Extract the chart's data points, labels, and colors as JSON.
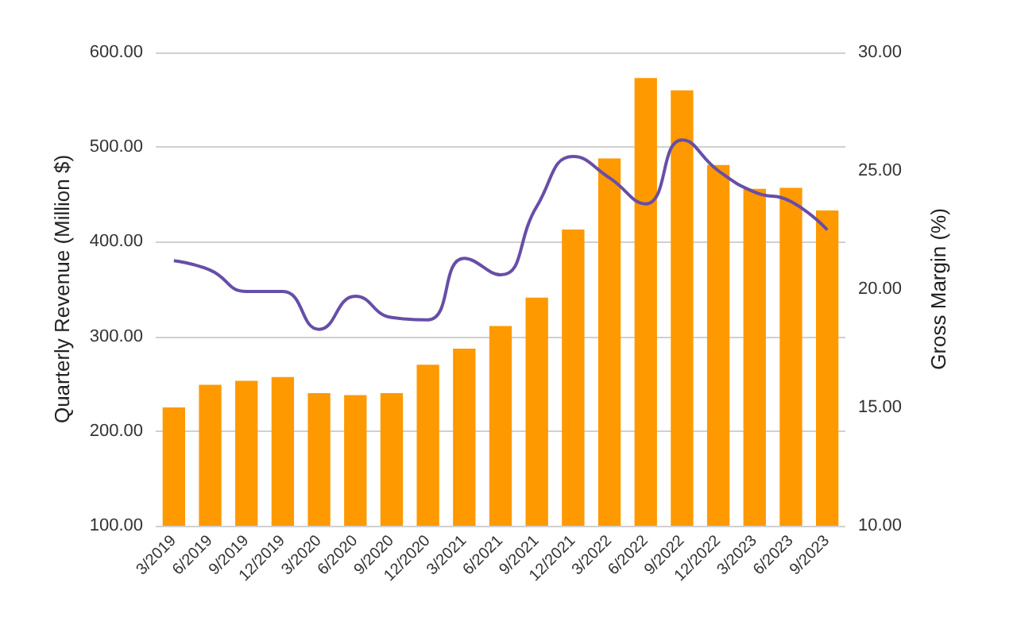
{
  "chart_data": {
    "type": "bar",
    "ylabel": "Quarterly Revenue (Million $)",
    "y2label": "Gross Margin (%)",
    "categories": [
      "3/2019",
      "6/2019",
      "9/2019",
      "12/2019",
      "3/2020",
      "6/2020",
      "9/2020",
      "12/2020",
      "3/2021",
      "6/2021",
      "9/2021",
      "12/2021",
      "3/2022",
      "6/2022",
      "9/2022",
      "12/2022",
      "3/2023",
      "6/2023",
      "9/2023"
    ],
    "series": [
      {
        "color": "#ff9900",
        "values": [
          225,
          249,
          253,
          257,
          240,
          238,
          240,
          270,
          287,
          311,
          341,
          413,
          488,
          573,
          560,
          481,
          456,
          457,
          433
        ]
      },
      {
        "type": "line",
        "axis": "y2",
        "color": "#674ea7",
        "values": [
          21.2,
          20.8,
          19.9,
          19.9,
          18.3,
          19.7,
          18.8,
          18.7,
          21.3,
          20.6,
          23.5,
          25.6,
          24.7,
          23.6,
          26.3,
          25.0,
          24.1,
          23.7,
          22.5
        ]
      }
    ],
    "ylim": [
      100,
      600
    ],
    "yticks": [
      {
        "value": 100,
        "label": "100.00"
      },
      {
        "value": 200,
        "label": "200.00"
      },
      {
        "value": 300,
        "label": "300.00"
      },
      {
        "value": 400,
        "label": "400.00"
      },
      {
        "value": 500,
        "label": "500.00"
      },
      {
        "value": 600,
        "label": "600.00"
      }
    ],
    "y2lim": [
      10,
      30
    ],
    "y2ticks": [
      {
        "value": 10,
        "label": "10.00"
      },
      {
        "value": 15,
        "label": "15.00"
      },
      {
        "value": 20,
        "label": "20.00"
      },
      {
        "value": 25,
        "label": "25.00"
      },
      {
        "value": 30,
        "label": "30.00"
      }
    ],
    "grid": true,
    "legend": false,
    "marker": "none",
    "line_style": "solid"
  }
}
